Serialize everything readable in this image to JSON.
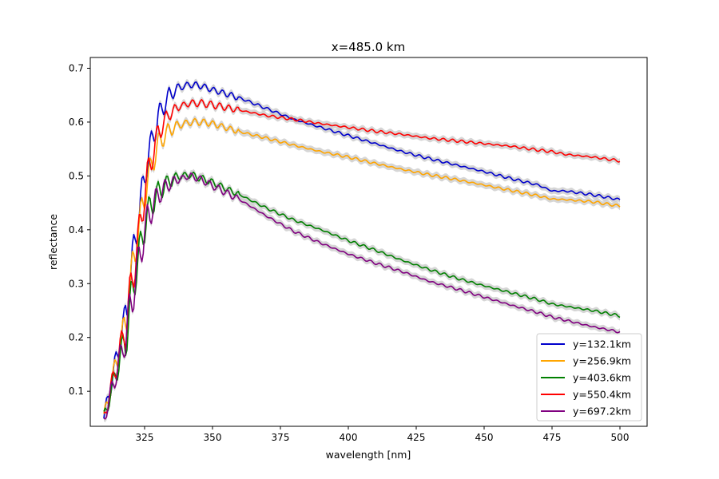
{
  "chart_data": {
    "type": "line",
    "title": "x=485.0 km",
    "xlabel": "wavelength [nm]",
    "ylabel": "reflectance",
    "xlim": [
      305,
      510
    ],
    "ylim": [
      0.035,
      0.72
    ],
    "xticks": [
      325,
      350,
      375,
      400,
      425,
      450,
      475,
      500
    ],
    "yticks": [
      0.1,
      0.2,
      0.3,
      0.4,
      0.5,
      0.6,
      0.7
    ],
    "grid": false,
    "legend_position": "lower-right",
    "band_color": "#c8c8c8",
    "series": [
      {
        "name": "y=132.1km",
        "color": "#0000cc",
        "x": [
          310,
          318,
          322,
          326,
          330,
          334,
          338,
          342,
          346,
          350,
          360,
          370,
          380,
          390,
          400,
          410,
          420,
          430,
          440,
          450,
          460,
          470,
          475,
          480,
          490,
          500
        ],
        "y": [
          0.05,
          0.24,
          0.4,
          0.53,
          0.61,
          0.65,
          0.665,
          0.67,
          0.667,
          0.66,
          0.645,
          0.625,
          0.605,
          0.59,
          0.575,
          0.56,
          0.545,
          0.532,
          0.52,
          0.508,
          0.495,
          0.483,
          0.472,
          0.472,
          0.465,
          0.456
        ]
      },
      {
        "name": "y=256.9km",
        "color": "#ffa500",
        "x": [
          310,
          318,
          322,
          326,
          330,
          334,
          338,
          342,
          346,
          350,
          360,
          370,
          380,
          390,
          400,
          410,
          420,
          430,
          440,
          450,
          460,
          470,
          475,
          480,
          490,
          500
        ],
        "y": [
          0.05,
          0.23,
          0.38,
          0.49,
          0.56,
          0.585,
          0.595,
          0.6,
          0.6,
          0.597,
          0.582,
          0.57,
          0.557,
          0.545,
          0.535,
          0.523,
          0.512,
          0.502,
          0.493,
          0.483,
          0.473,
          0.463,
          0.457,
          0.456,
          0.452,
          0.444
        ]
      },
      {
        "name": "y=403.6km",
        "color": "#008000",
        "x": [
          310,
          318,
          322,
          326,
          330,
          334,
          338,
          342,
          346,
          350,
          360,
          370,
          380,
          390,
          400,
          410,
          420,
          430,
          440,
          450,
          460,
          470,
          475,
          480,
          490,
          500
        ],
        "y": [
          0.05,
          0.2,
          0.33,
          0.43,
          0.47,
          0.49,
          0.5,
          0.502,
          0.495,
          0.488,
          0.465,
          0.44,
          0.418,
          0.4,
          0.38,
          0.362,
          0.343,
          0.326,
          0.31,
          0.296,
          0.283,
          0.27,
          0.262,
          0.258,
          0.25,
          0.24
        ]
      },
      {
        "name": "y=550.4km",
        "color": "#ff0000",
        "x": [
          310,
          318,
          322,
          326,
          330,
          334,
          338,
          342,
          346,
          350,
          360,
          370,
          380,
          390,
          400,
          410,
          420,
          430,
          440,
          450,
          460,
          470,
          475,
          480,
          490,
          500
        ],
        "y": [
          0.05,
          0.22,
          0.36,
          0.5,
          0.58,
          0.615,
          0.63,
          0.635,
          0.635,
          0.632,
          0.622,
          0.612,
          0.605,
          0.597,
          0.59,
          0.583,
          0.577,
          0.57,
          0.565,
          0.56,
          0.555,
          0.548,
          0.545,
          0.54,
          0.535,
          0.528
        ]
      },
      {
        "name": "y=697.2km",
        "color": "#800080",
        "x": [
          310,
          318,
          322,
          326,
          330,
          334,
          338,
          342,
          346,
          350,
          360,
          370,
          380,
          390,
          400,
          410,
          420,
          430,
          440,
          450,
          460,
          470,
          475,
          480,
          490,
          500
        ],
        "y": [
          0.047,
          0.2,
          0.32,
          0.42,
          0.465,
          0.485,
          0.495,
          0.5,
          0.493,
          0.482,
          0.456,
          0.425,
          0.397,
          0.375,
          0.355,
          0.338,
          0.322,
          0.304,
          0.29,
          0.275,
          0.26,
          0.246,
          0.238,
          0.232,
          0.22,
          0.21
        ]
      }
    ]
  }
}
